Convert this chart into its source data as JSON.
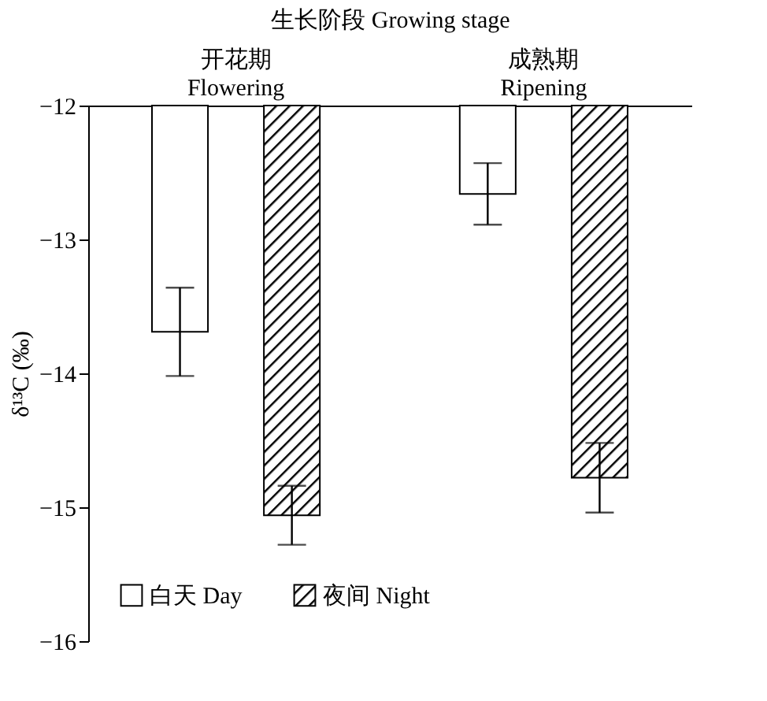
{
  "chart_data": {
    "type": "bar",
    "xlabel": "生长阶段 Growing stage",
    "ylabel": "δ¹³C (‰)",
    "categories": [
      "开花期 Flowering",
      "成熟期 Ripening"
    ],
    "series": [
      {
        "name": "白天 Day",
        "color": "#ffffff",
        "values": [
          -13.69,
          -12.66
        ],
        "errors": [
          0.33,
          0.23
        ]
      },
      {
        "name": "夜间 Night",
        "color": "#000000",
        "values": [
          -15.06,
          -14.78
        ],
        "errors": [
          0.22,
          0.26
        ]
      }
    ],
    "ylim": [
      -16,
      -12
    ],
    "yticks": [
      -16,
      -15,
      -14,
      -13,
      -12
    ],
    "grid": false,
    "legend": "bottom left"
  }
}
